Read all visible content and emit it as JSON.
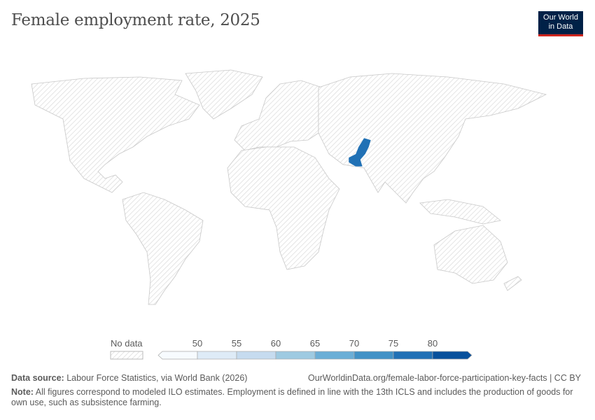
{
  "title": "Female employment rate, 2025",
  "logo": {
    "line1": "Our World",
    "line2": "in Data"
  },
  "chart_data": {
    "type": "map",
    "title": "Female employment rate, 2025",
    "color_scale": {
      "bins": [
        50,
        55,
        60,
        65,
        70,
        75,
        80
      ],
      "colors": [
        "#f7fbff",
        "#deebf7",
        "#c6dbef",
        "#9ecae1",
        "#6baed6",
        "#4292c6",
        "#2171b5",
        "#08519c"
      ],
      "no_data_label": "No data",
      "no_data_color": "#e6e6e6"
    },
    "regions": [
      {
        "name": "Pakistan",
        "bin": "75–80",
        "color": "#2171b5"
      }
    ],
    "all_other_regions": "No data"
  },
  "footer": {
    "source_label": "Data source:",
    "source": "Labour Force Statistics, via World Bank (2026)",
    "url": "OurWorldinData.org/female-labor-force-participation-key-facts | CC BY",
    "note_label": "Note:",
    "note": "All figures correspond to modeled ILO estimates. Employment is defined in line with the 13th ICLS and includes the production of goods for own use, such as subsistence farming."
  }
}
